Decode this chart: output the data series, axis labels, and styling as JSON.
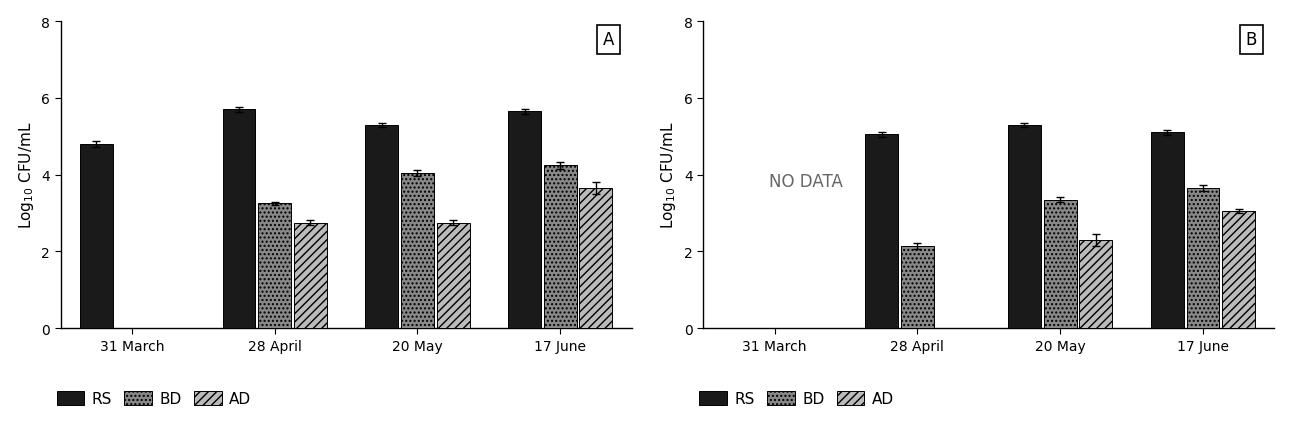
{
  "panel_A": {
    "categories": [
      "31 March",
      "28 April",
      "20 May",
      "17 June"
    ],
    "RS": [
      4.8,
      5.7,
      5.3,
      5.65
    ],
    "BD": [
      null,
      3.25,
      4.05,
      4.25
    ],
    "AD": [
      null,
      2.75,
      2.75,
      3.65
    ],
    "RS_err": [
      0.07,
      0.06,
      0.05,
      0.06
    ],
    "BD_err": [
      null,
      0.05,
      0.08,
      0.09
    ],
    "AD_err": [
      null,
      0.06,
      0.07,
      0.15
    ],
    "label": "A",
    "ylabel": "Log$_{10}$ CFU/mL",
    "ylim": [
      0,
      8
    ],
    "yticks": [
      0,
      2,
      4,
      6,
      8
    ]
  },
  "panel_B": {
    "categories": [
      "31 March",
      "28 April",
      "20 May",
      "17 June"
    ],
    "RS": [
      null,
      5.05,
      5.3,
      5.1
    ],
    "BD": [
      null,
      2.15,
      3.35,
      3.65
    ],
    "AD": [
      null,
      null,
      2.3,
      3.05
    ],
    "RS_err": [
      null,
      0.06,
      0.06,
      0.06
    ],
    "BD_err": [
      null,
      0.08,
      0.06,
      0.07
    ],
    "AD_err": [
      null,
      null,
      0.15,
      0.06
    ],
    "label": "B",
    "no_data_text": "NO DATA",
    "ylabel": "Log$_{10}$ CFU/mL",
    "ylim": [
      0,
      8
    ],
    "yticks": [
      0,
      2,
      4,
      6,
      8
    ]
  },
  "bar_width": 0.25,
  "RS_color": "#1a1a1a",
  "BD_color": "#888888",
  "AD_color": "#bbbbbb",
  "RS_hatch": "",
  "BD_hatch": "....",
  "AD_hatch": "////",
  "fontsize_label": 11,
  "fontsize_tick": 10,
  "fontsize_legend": 11,
  "fontsize_panel": 12,
  "no_data_fontsize": 12
}
